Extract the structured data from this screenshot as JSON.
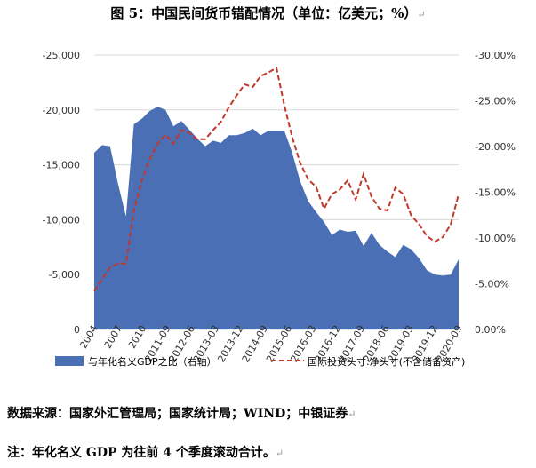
{
  "title": "图 5：中国民间货币错配情况（单位：亿美元；%）",
  "return_mark": "↵",
  "source": "数据来源：国家外汇管理局；国家统计局；WIND；中银证券",
  "note": "注：年化名义 GDP 为往前 4 个季度滚动合计。",
  "chart_data": {
    "type": "area+line",
    "title": "",
    "left_axis": {
      "range": [
        0,
        -25000
      ],
      "ticks": [
        0,
        -5000,
        -10000,
        -15000,
        -20000,
        -25000
      ],
      "tick_labels": [
        "0",
        "-5,000",
        "-10,000",
        "-15,000",
        "-20,000",
        "-25,000"
      ]
    },
    "right_axis": {
      "range": [
        0,
        -30
      ],
      "ticks": [
        0,
        -5,
        -10,
        -15,
        -20,
        -25,
        -30
      ],
      "tick_labels": [
        "0.00%",
        "-5.00%",
        "-10.00%",
        "-15.00%",
        "-20.00%",
        "-25.00%",
        "-30.00%"
      ]
    },
    "x_tick_labels": [
      "2004",
      "2007",
      "2010",
      "2011-09",
      "2012-06",
      "2013-03",
      "2013-12",
      "2014-09",
      "2015-06",
      "2016-03",
      "2016-12",
      "2017-09",
      "2018-06",
      "2019-03",
      "2019-12",
      "2020-09"
    ],
    "legend_position": "bottom",
    "series": [
      {
        "name": "国际投资头寸:净头寸(不含储备资产)",
        "type": "area",
        "axis": "left",
        "color": "#4a6fb5",
        "values": [
          -16100,
          -16800,
          -16700,
          -13300,
          -10300,
          -18700,
          -19200,
          -19900,
          -20300,
          -20000,
          -18500,
          -19000,
          -18200,
          -17400,
          -16700,
          -17200,
          -17000,
          -17700,
          -17700,
          -17900,
          -18300,
          -17700,
          -18100,
          -18100,
          -18100,
          -16100,
          -13500,
          -11700,
          -10700,
          -9800,
          -8600,
          -9100,
          -8900,
          -9000,
          -7600,
          -8800,
          -7700,
          -7100,
          -6600,
          -7700,
          -7300,
          -6500,
          -5400,
          -5000,
          -4900,
          -5000,
          -6400
        ]
      },
      {
        "name": "与年化名义GDP之比（右轴）",
        "type": "line",
        "axis": "right",
        "color": "#c0392b",
        "values": [
          -4.2,
          -5.5,
          -6.8,
          -7.2,
          -7.2,
          -13,
          -16.3,
          -18.6,
          -20.3,
          -21.3,
          -20.3,
          -21.8,
          -21.5,
          -20.8,
          -20.8,
          -21.8,
          -22.7,
          -24.3,
          -25.6,
          -26.8,
          -26.5,
          -27.7,
          -28.1,
          -28.6,
          -24.5,
          -21,
          -18.2,
          -16.4,
          -15.6,
          -13.2,
          -14.8,
          -15.3,
          -16.3,
          -14.2,
          -17,
          -14.5,
          -13.2,
          -13,
          -15.5,
          -14.8,
          -12.5,
          -11.5,
          -10.2,
          -9.6,
          -10.1,
          -11.5,
          -14.8
        ]
      }
    ]
  }
}
